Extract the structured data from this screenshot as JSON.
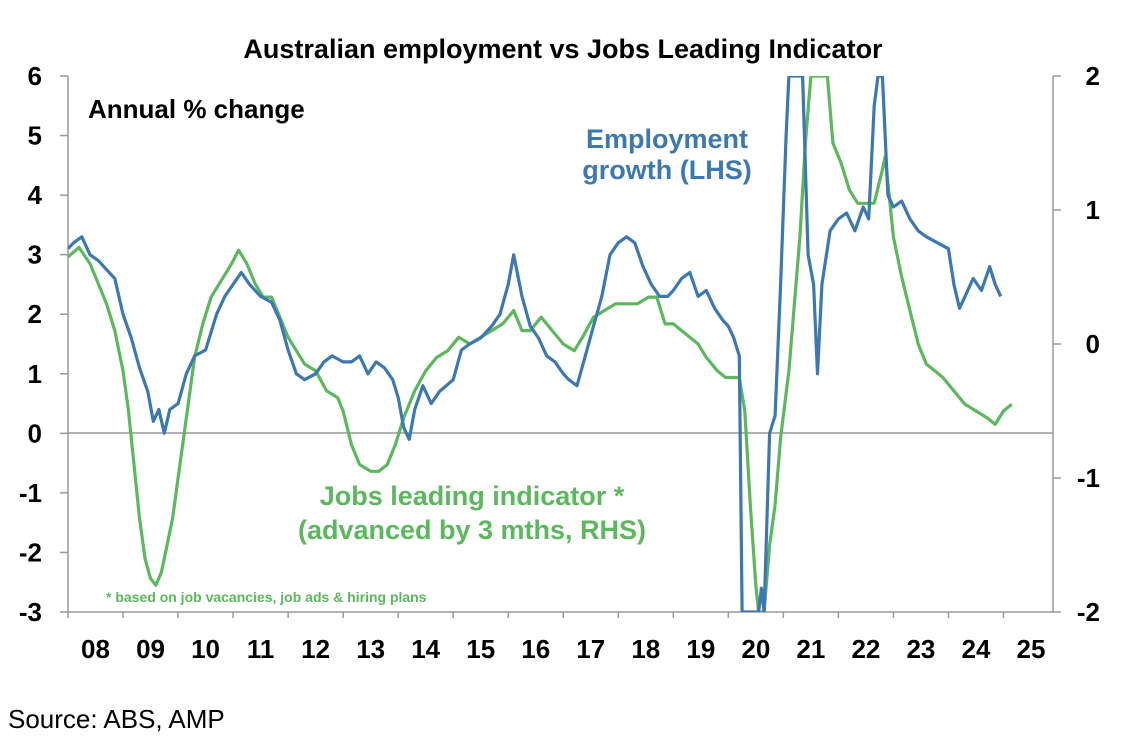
{
  "chart_data": {
    "type": "line",
    "title": "Australian employment vs Jobs Leading Indicator",
    "annotation": "Annual % change",
    "footnote": "* based on job vacancies, job ads & hiring plans",
    "x_ticks": [
      "08",
      "09",
      "10",
      "11",
      "12",
      "13",
      "14",
      "15",
      "16",
      "17",
      "18",
      "19",
      "20",
      "21",
      "22",
      "23",
      "24",
      "25"
    ],
    "x_range": [
      2008.0,
      2025.9
    ],
    "y_left": {
      "ticks": [
        "6",
        "5",
        "4",
        "3",
        "2",
        "1",
        "0",
        "-1",
        "-2",
        "-3"
      ],
      "range": [
        -3,
        6
      ]
    },
    "y_right": {
      "ticks": [
        "2",
        "1",
        "0",
        "-1",
        "-2"
      ],
      "range": [
        -2,
        2
      ]
    },
    "grid": false,
    "colors": {
      "employment": "#3c78b1",
      "jobs_leading": "#5cb85c"
    },
    "series": [
      {
        "name": "Employment growth (LHS)",
        "label_lines": [
          "Employment",
          "growth (LHS)"
        ],
        "axis": "left",
        "points": [
          [
            2008.0,
            3.1
          ],
          [
            2008.1,
            3.2
          ],
          [
            2008.25,
            3.3
          ],
          [
            2008.4,
            3.0
          ],
          [
            2008.55,
            2.9
          ],
          [
            2008.7,
            2.75
          ],
          [
            2008.85,
            2.6
          ],
          [
            2009.0,
            2.0
          ],
          [
            2009.15,
            1.6
          ],
          [
            2009.3,
            1.1
          ],
          [
            2009.45,
            0.7
          ],
          [
            2009.55,
            0.2
          ],
          [
            2009.65,
            0.4
          ],
          [
            2009.75,
            0.0
          ],
          [
            2009.85,
            0.4
          ],
          [
            2010.0,
            0.5
          ],
          [
            2010.15,
            1.0
          ],
          [
            2010.3,
            1.3
          ],
          [
            2010.5,
            1.4
          ],
          [
            2010.7,
            2.0
          ],
          [
            2010.85,
            2.3
          ],
          [
            2011.0,
            2.5
          ],
          [
            2011.15,
            2.7
          ],
          [
            2011.3,
            2.5
          ],
          [
            2011.5,
            2.3
          ],
          [
            2011.7,
            2.2
          ],
          [
            2011.85,
            1.9
          ],
          [
            2012.0,
            1.4
          ],
          [
            2012.15,
            1.0
          ],
          [
            2012.3,
            0.9
          ],
          [
            2012.5,
            1.0
          ],
          [
            2012.65,
            1.2
          ],
          [
            2012.8,
            1.3
          ],
          [
            2013.0,
            1.2
          ],
          [
            2013.15,
            1.2
          ],
          [
            2013.3,
            1.3
          ],
          [
            2013.45,
            1.0
          ],
          [
            2013.6,
            1.2
          ],
          [
            2013.75,
            1.1
          ],
          [
            2013.9,
            0.9
          ],
          [
            2014.0,
            0.6
          ],
          [
            2014.1,
            0.1
          ],
          [
            2014.2,
            -0.1
          ],
          [
            2014.3,
            0.4
          ],
          [
            2014.45,
            0.8
          ],
          [
            2014.6,
            0.5
          ],
          [
            2014.75,
            0.7
          ],
          [
            2015.0,
            0.9
          ],
          [
            2015.15,
            1.4
          ],
          [
            2015.3,
            1.5
          ],
          [
            2015.5,
            1.6
          ],
          [
            2015.7,
            1.8
          ],
          [
            2015.85,
            2.0
          ],
          [
            2016.0,
            2.5
          ],
          [
            2016.1,
            3.0
          ],
          [
            2016.25,
            2.3
          ],
          [
            2016.4,
            1.8
          ],
          [
            2016.55,
            1.6
          ],
          [
            2016.7,
            1.3
          ],
          [
            2016.85,
            1.2
          ],
          [
            2017.0,
            1.0
          ],
          [
            2017.1,
            0.9
          ],
          [
            2017.25,
            0.8
          ],
          [
            2017.4,
            1.3
          ],
          [
            2017.55,
            1.8
          ],
          [
            2017.7,
            2.3
          ],
          [
            2017.85,
            3.0
          ],
          [
            2018.0,
            3.2
          ],
          [
            2018.15,
            3.3
          ],
          [
            2018.3,
            3.2
          ],
          [
            2018.45,
            2.8
          ],
          [
            2018.6,
            2.5
          ],
          [
            2018.75,
            2.3
          ],
          [
            2018.9,
            2.3
          ],
          [
            2019.0,
            2.4
          ],
          [
            2019.15,
            2.6
          ],
          [
            2019.3,
            2.7
          ],
          [
            2019.45,
            2.3
          ],
          [
            2019.6,
            2.4
          ],
          [
            2019.75,
            2.1
          ],
          [
            2019.9,
            1.9
          ],
          [
            2020.0,
            1.8
          ],
          [
            2020.1,
            1.6
          ],
          [
            2020.2,
            1.3
          ],
          [
            2020.25,
            -3.0
          ],
          [
            2020.55,
            -3.0
          ],
          [
            2020.6,
            -2.6
          ],
          [
            2020.65,
            -3.0
          ],
          [
            2020.75,
            0.0
          ],
          [
            2020.85,
            0.3
          ],
          [
            2020.95,
            2.5
          ],
          [
            2021.05,
            5.0
          ],
          [
            2021.1,
            6.0
          ],
          [
            2021.35,
            6.0
          ],
          [
            2021.45,
            3.0
          ],
          [
            2021.55,
            2.5
          ],
          [
            2021.62,
            1.0
          ],
          [
            2021.7,
            2.5
          ],
          [
            2021.85,
            3.4
          ],
          [
            2022.0,
            3.6
          ],
          [
            2022.15,
            3.7
          ],
          [
            2022.3,
            3.4
          ],
          [
            2022.45,
            3.8
          ],
          [
            2022.55,
            3.6
          ],
          [
            2022.65,
            5.5
          ],
          [
            2022.72,
            6.0
          ],
          [
            2022.8,
            6.0
          ],
          [
            2022.9,
            4.0
          ],
          [
            2023.0,
            3.8
          ],
          [
            2023.15,
            3.9
          ],
          [
            2023.3,
            3.6
          ],
          [
            2023.45,
            3.4
          ],
          [
            2023.6,
            3.3
          ],
          [
            2023.8,
            3.2
          ],
          [
            2024.0,
            3.1
          ],
          [
            2024.1,
            2.5
          ],
          [
            2024.2,
            2.1
          ],
          [
            2024.3,
            2.3
          ],
          [
            2024.45,
            2.6
          ],
          [
            2024.6,
            2.4
          ],
          [
            2024.75,
            2.8
          ],
          [
            2024.85,
            2.5
          ],
          [
            2024.95,
            2.3
          ]
        ]
      },
      {
        "name": "Jobs leading indicator * (advanced by 3 mths, RHS)",
        "label_lines": [
          "Jobs leading indicator *",
          "(advanced by 3 mths, RHS)"
        ],
        "axis": "right",
        "points": [
          [
            2008.0,
            0.65
          ],
          [
            2008.2,
            0.72
          ],
          [
            2008.4,
            0.6
          ],
          [
            2008.55,
            0.45
          ],
          [
            2008.7,
            0.3
          ],
          [
            2008.85,
            0.1
          ],
          [
            2009.0,
            -0.2
          ],
          [
            2009.1,
            -0.5
          ],
          [
            2009.2,
            -0.9
          ],
          [
            2009.3,
            -1.3
          ],
          [
            2009.4,
            -1.6
          ],
          [
            2009.5,
            -1.75
          ],
          [
            2009.6,
            -1.8
          ],
          [
            2009.7,
            -1.7
          ],
          [
            2009.8,
            -1.5
          ],
          [
            2009.9,
            -1.3
          ],
          [
            2010.0,
            -1.0
          ],
          [
            2010.1,
            -0.7
          ],
          [
            2010.2,
            -0.4
          ],
          [
            2010.3,
            -0.1
          ],
          [
            2010.45,
            0.15
          ],
          [
            2010.6,
            0.35
          ],
          [
            2010.75,
            0.45
          ],
          [
            2010.9,
            0.55
          ],
          [
            2011.0,
            0.62
          ],
          [
            2011.1,
            0.7
          ],
          [
            2011.25,
            0.6
          ],
          [
            2011.4,
            0.45
          ],
          [
            2011.55,
            0.35
          ],
          [
            2011.7,
            0.35
          ],
          [
            2011.85,
            0.2
          ],
          [
            2012.0,
            0.05
          ],
          [
            2012.15,
            -0.05
          ],
          [
            2012.3,
            -0.15
          ],
          [
            2012.5,
            -0.2
          ],
          [
            2012.7,
            -0.35
          ],
          [
            2012.9,
            -0.4
          ],
          [
            2013.0,
            -0.5
          ],
          [
            2013.15,
            -0.75
          ],
          [
            2013.3,
            -0.9
          ],
          [
            2013.5,
            -0.95
          ],
          [
            2013.65,
            -0.95
          ],
          [
            2013.8,
            -0.9
          ],
          [
            2013.95,
            -0.75
          ],
          [
            2014.1,
            -0.55
          ],
          [
            2014.3,
            -0.35
          ],
          [
            2014.5,
            -0.2
          ],
          [
            2014.7,
            -0.1
          ],
          [
            2014.9,
            -0.05
          ],
          [
            2015.1,
            0.05
          ],
          [
            2015.3,
            0.0
          ],
          [
            2015.5,
            0.05
          ],
          [
            2015.7,
            0.1
          ],
          [
            2015.9,
            0.15
          ],
          [
            2016.1,
            0.25
          ],
          [
            2016.25,
            0.1
          ],
          [
            2016.4,
            0.1
          ],
          [
            2016.6,
            0.2
          ],
          [
            2016.8,
            0.1
          ],
          [
            2017.0,
            0.0
          ],
          [
            2017.2,
            -0.05
          ],
          [
            2017.35,
            0.05
          ],
          [
            2017.55,
            0.2
          ],
          [
            2017.75,
            0.25
          ],
          [
            2017.95,
            0.3
          ],
          [
            2018.15,
            0.3
          ],
          [
            2018.35,
            0.3
          ],
          [
            2018.55,
            0.35
          ],
          [
            2018.7,
            0.35
          ],
          [
            2018.85,
            0.15
          ],
          [
            2019.0,
            0.15
          ],
          [
            2019.15,
            0.1
          ],
          [
            2019.3,
            0.05
          ],
          [
            2019.45,
            0.0
          ],
          [
            2019.6,
            -0.1
          ],
          [
            2019.8,
            -0.2
          ],
          [
            2019.95,
            -0.25
          ],
          [
            2020.1,
            -0.25
          ],
          [
            2020.2,
            -0.25
          ],
          [
            2020.3,
            -0.5
          ],
          [
            2020.4,
            -1.2
          ],
          [
            2020.5,
            -1.8
          ],
          [
            2020.55,
            -2.0
          ],
          [
            2020.65,
            -2.0
          ],
          [
            2020.75,
            -1.5
          ],
          [
            2020.85,
            -1.2
          ],
          [
            2020.95,
            -0.7
          ],
          [
            2021.1,
            -0.2
          ],
          [
            2021.2,
            0.3
          ],
          [
            2021.3,
            0.8
          ],
          [
            2021.4,
            1.5
          ],
          [
            2021.5,
            2.0
          ],
          [
            2021.8,
            2.0
          ],
          [
            2021.9,
            1.5
          ],
          [
            2022.05,
            1.35
          ],
          [
            2022.2,
            1.15
          ],
          [
            2022.35,
            1.05
          ],
          [
            2022.5,
            1.05
          ],
          [
            2022.65,
            1.05
          ],
          [
            2022.8,
            1.3
          ],
          [
            2022.85,
            1.4
          ],
          [
            2022.9,
            1.2
          ],
          [
            2023.0,
            0.8
          ],
          [
            2023.15,
            0.5
          ],
          [
            2023.3,
            0.25
          ],
          [
            2023.45,
            0.0
          ],
          [
            2023.6,
            -0.15
          ],
          [
            2023.75,
            -0.2
          ],
          [
            2023.9,
            -0.25
          ],
          [
            2024.1,
            -0.35
          ],
          [
            2024.3,
            -0.45
          ],
          [
            2024.5,
            -0.5
          ],
          [
            2024.7,
            -0.55
          ],
          [
            2024.85,
            -0.6
          ],
          [
            2025.0,
            -0.5
          ],
          [
            2025.15,
            -0.45
          ]
        ]
      }
    ]
  },
  "source": "Source: ABS, AMP"
}
